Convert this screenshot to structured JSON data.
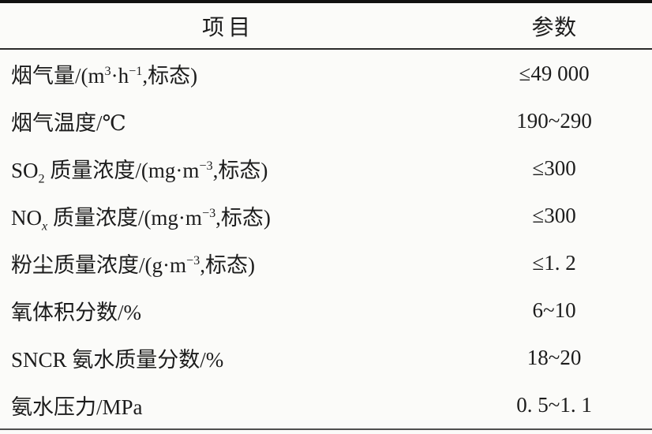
{
  "table": {
    "columns": [
      {
        "label": "项目"
      },
      {
        "label": "参数"
      }
    ],
    "rows": [
      {
        "label_segments": [
          {
            "t": "烟气量/(m"
          },
          {
            "t": "3",
            "s": "sup"
          },
          {
            "t": "·h"
          },
          {
            "t": "−1",
            "s": "sup"
          },
          {
            "t": ",标态)"
          }
        ],
        "value": "≤49 000"
      },
      {
        "label_segments": [
          {
            "t": "烟气温度/℃"
          }
        ],
        "value": "190~290"
      },
      {
        "label_segments": [
          {
            "t": "SO"
          },
          {
            "t": "2",
            "s": "sub"
          },
          {
            "t": " 质量浓度/(mg·m"
          },
          {
            "t": "−3",
            "s": "sup"
          },
          {
            "t": ",标态)"
          }
        ],
        "value": "≤300"
      },
      {
        "label_segments": [
          {
            "t": "NO"
          },
          {
            "t": "x",
            "s": "subi"
          },
          {
            "t": " 质量浓度/(mg·m"
          },
          {
            "t": "−3",
            "s": "sup"
          },
          {
            "t": ",标态)"
          }
        ],
        "value": "≤300"
      },
      {
        "label_segments": [
          {
            "t": "粉尘质量浓度/(g·m"
          },
          {
            "t": "−3",
            "s": "sup"
          },
          {
            "t": ",标态)"
          }
        ],
        "value": "≤1. 2"
      },
      {
        "label_segments": [
          {
            "t": "氧体积分数/%"
          }
        ],
        "value": "6~10"
      },
      {
        "label_segments": [
          {
            "t": "SNCR 氨水质量分数/%"
          }
        ],
        "value": "18~20"
      },
      {
        "label_segments": [
          {
            "t": "氨水压力/MPa"
          }
        ],
        "value": "0. 5~1. 1"
      }
    ]
  }
}
